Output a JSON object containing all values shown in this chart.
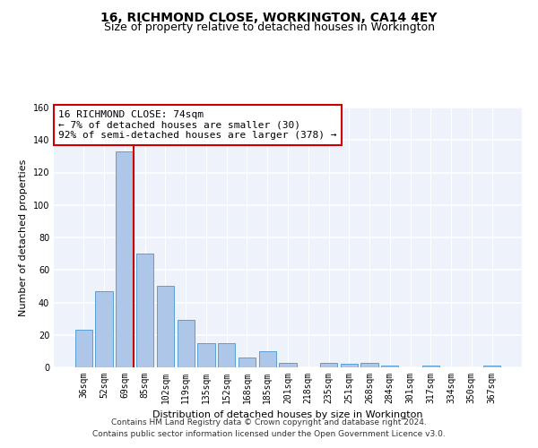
{
  "title": "16, RICHMOND CLOSE, WORKINGTON, CA14 4EY",
  "subtitle": "Size of property relative to detached houses in Workington",
  "xlabel": "Distribution of detached houses by size in Workington",
  "ylabel": "Number of detached properties",
  "categories": [
    "36sqm",
    "52sqm",
    "69sqm",
    "85sqm",
    "102sqm",
    "119sqm",
    "135sqm",
    "152sqm",
    "168sqm",
    "185sqm",
    "201sqm",
    "218sqm",
    "235sqm",
    "251sqm",
    "268sqm",
    "284sqm",
    "301sqm",
    "317sqm",
    "334sqm",
    "350sqm",
    "367sqm"
  ],
  "values": [
    23,
    47,
    133,
    70,
    50,
    29,
    15,
    15,
    6,
    10,
    3,
    0,
    3,
    2,
    3,
    1,
    0,
    1,
    0,
    0,
    1
  ],
  "bar_color": "#aec6e8",
  "bar_edgecolor": "#5a9fd4",
  "ref_line_color": "#cc0000",
  "annotation_text": "16 RICHMOND CLOSE: 74sqm\n← 7% of detached houses are smaller (30)\n92% of semi-detached houses are larger (378) →",
  "annotation_box_edgecolor": "#cc0000",
  "ylim": [
    0,
    160
  ],
  "yticks": [
    0,
    20,
    40,
    60,
    80,
    100,
    120,
    140,
    160
  ],
  "footer_line1": "Contains HM Land Registry data © Crown copyright and database right 2024.",
  "footer_line2": "Contains public sector information licensed under the Open Government Licence v3.0.",
  "bg_color": "#eef2fb",
  "grid_color": "#ffffff",
  "title_fontsize": 10,
  "subtitle_fontsize": 9,
  "axis_label_fontsize": 8,
  "tick_fontsize": 7,
  "annotation_fontsize": 8,
  "footer_fontsize": 6.5
}
